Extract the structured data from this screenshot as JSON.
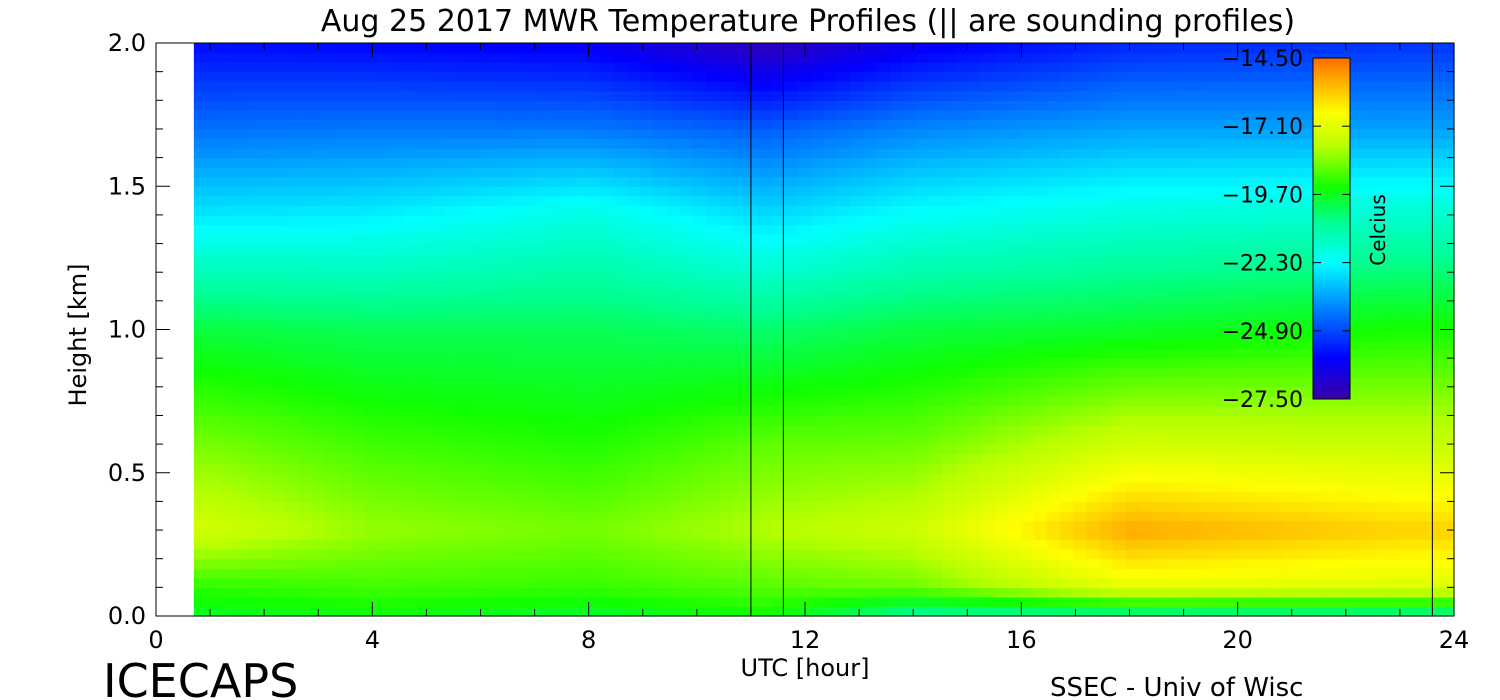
{
  "chart_data": {
    "type": "heatmap",
    "title": "Aug 25 2017 MWR Temperature Profiles (|| are sounding profiles)",
    "xlabel": "UTC [hour]",
    "ylabel": "Height [km]",
    "xlim": [
      0,
      24
    ],
    "ylim": [
      0,
      2
    ],
    "x_ticks": [
      "0",
      "4",
      "8",
      "12",
      "16",
      "20",
      "24"
    ],
    "y_ticks": [
      "0.0",
      "0.5",
      "1.0",
      "1.5",
      "2.0"
    ],
    "data_start_hour": 0.7,
    "sounding_profiles_hour": [
      11.0,
      11.6,
      23.6
    ],
    "colorbar": {
      "label": "Celcius",
      "ticks": [
        "-14.50",
        "-17.10",
        "-19.70",
        "-22.30",
        "-24.90",
        "-27.50"
      ],
      "range": [
        -27.5,
        -14.5
      ]
    },
    "temperature_samples": [
      {
        "hour": 1,
        "profile_km": [
          [
            0.0,
            -19.8
          ],
          [
            0.1,
            -19.2
          ],
          [
            0.3,
            -17.4
          ],
          [
            0.6,
            -18.5
          ],
          [
            1.0,
            -20.0
          ],
          [
            1.4,
            -22.6
          ],
          [
            1.7,
            -24.3
          ],
          [
            2.0,
            -25.8
          ]
        ]
      },
      {
        "hour": 4,
        "profile_km": [
          [
            0.0,
            -19.6
          ],
          [
            0.1,
            -19.0
          ],
          [
            0.3,
            -18.2
          ],
          [
            0.6,
            -19.0
          ],
          [
            1.0,
            -20.2
          ],
          [
            1.4,
            -22.5
          ],
          [
            1.7,
            -24.2
          ],
          [
            2.0,
            -25.9
          ]
        ]
      },
      {
        "hour": 8,
        "profile_km": [
          [
            0.0,
            -19.9
          ],
          [
            0.1,
            -19.1
          ],
          [
            0.3,
            -18.5
          ],
          [
            0.6,
            -19.3
          ],
          [
            1.0,
            -20.2
          ],
          [
            1.4,
            -21.9
          ],
          [
            1.7,
            -24.2
          ],
          [
            2.0,
            -26.1
          ]
        ]
      },
      {
        "hour": 11.3,
        "profile_km": [
          [
            0.0,
            -19.5
          ],
          [
            0.1,
            -18.8
          ],
          [
            0.3,
            -17.9
          ],
          [
            0.6,
            -18.7
          ],
          [
            1.0,
            -20.4
          ],
          [
            1.4,
            -22.8
          ],
          [
            1.7,
            -24.6
          ],
          [
            2.0,
            -27.2
          ]
        ]
      },
      {
        "hour": 14,
        "profile_km": [
          [
            0.0,
            -21.0
          ],
          [
            0.1,
            -18.6
          ],
          [
            0.3,
            -17.5
          ],
          [
            0.6,
            -18.6
          ],
          [
            1.0,
            -20.0
          ],
          [
            1.4,
            -22.2
          ],
          [
            1.7,
            -24.0
          ],
          [
            2.0,
            -26.2
          ]
        ]
      },
      {
        "hour": 18,
        "profile_km": [
          [
            0.0,
            -21.0
          ],
          [
            0.1,
            -17.0
          ],
          [
            0.3,
            -15.3
          ],
          [
            0.6,
            -17.4
          ],
          [
            1.0,
            -19.8
          ],
          [
            1.4,
            -21.8
          ],
          [
            1.7,
            -23.6
          ],
          [
            2.0,
            -25.4
          ]
        ]
      },
      {
        "hour": 23,
        "profile_km": [
          [
            0.0,
            -21.0
          ],
          [
            0.1,
            -17.2
          ],
          [
            0.3,
            -15.9
          ],
          [
            0.6,
            -17.6
          ],
          [
            1.0,
            -19.4
          ],
          [
            1.4,
            -21.6
          ],
          [
            1.7,
            -23.6
          ],
          [
            2.0,
            -25.2
          ]
        ]
      }
    ],
    "grid": false,
    "legend_placement": "right (colorbar)"
  },
  "footer": {
    "left_label": "ICECAPS",
    "right_label": "SSEC - Univ of Wisc"
  }
}
